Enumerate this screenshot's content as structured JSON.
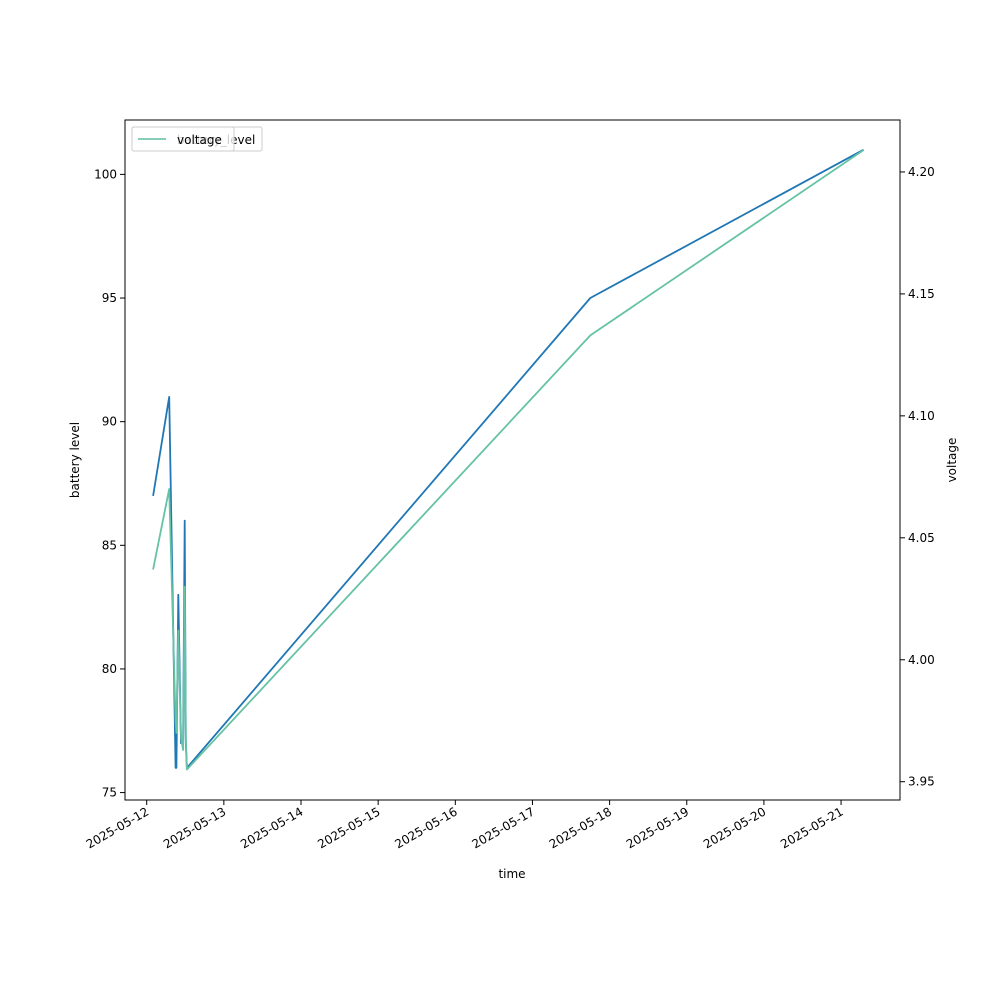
{
  "chart_data": {
    "type": "line",
    "xlabel": "time",
    "ylabel": "battery level",
    "ylabel_right": "voltage",
    "xlim": [
      "2025-05-11 17:15",
      "2025-05-21 18:20"
    ],
    "ylim": [
      74.7,
      102.2
    ],
    "ylim_right": [
      3.9425,
      4.2213
    ],
    "x_ticks": [
      "2025-05-12",
      "2025-05-13",
      "2025-05-14",
      "2025-05-15",
      "2025-05-16",
      "2025-05-17",
      "2025-05-18",
      "2025-05-19",
      "2025-05-20",
      "2025-05-21"
    ],
    "y_ticks": [
      75,
      80,
      85,
      90,
      95,
      100
    ],
    "y_ticks_right": [
      "3.95",
      "4.00",
      "4.05",
      "4.10",
      "4.15",
      "4.20"
    ],
    "legend": {
      "placement": "top-left",
      "entries": [
        {
          "name": "battery_level",
          "color": "#1f77b4"
        },
        {
          "name": "voltage",
          "color": "#66c2a5"
        }
      ]
    },
    "series": [
      {
        "name": "battery_level",
        "axis": "left",
        "color": "#1f77b4",
        "points": [
          {
            "x": "2025-05-12 02:00",
            "y": 87
          },
          {
            "x": "2025-05-12 07:00",
            "y": 91
          },
          {
            "x": "2025-05-12 09:00",
            "y": 76
          },
          {
            "x": "2025-05-12 09:15",
            "y": 76
          },
          {
            "x": "2025-05-12 09:50",
            "y": 83
          },
          {
            "x": "2025-05-12 10:40",
            "y": 77
          },
          {
            "x": "2025-05-12 11:20",
            "y": 77
          },
          {
            "x": "2025-05-12 11:50",
            "y": 86
          },
          {
            "x": "2025-05-12 12:10",
            "y": 77
          },
          {
            "x": "2025-05-12 12:30",
            "y": 76
          },
          {
            "x": "2025-05-17 18:00",
            "y": 95
          },
          {
            "x": "2025-05-21 07:00",
            "y": 101
          }
        ]
      },
      {
        "name": "voltage",
        "axis": "right",
        "color": "#66c2a5",
        "points": [
          {
            "x": "2025-05-12 02:00",
            "y": 4.037
          },
          {
            "x": "2025-05-12 07:00",
            "y": 4.07
          },
          {
            "x": "2025-05-12 09:00",
            "y": 3.975
          },
          {
            "x": "2025-05-12 09:15",
            "y": 3.97
          },
          {
            "x": "2025-05-12 09:50",
            "y": 4.012
          },
          {
            "x": "2025-05-12 10:40",
            "y": 3.968
          },
          {
            "x": "2025-05-12 11:20",
            "y": 3.963
          },
          {
            "x": "2025-05-12 11:50",
            "y": 4.03
          },
          {
            "x": "2025-05-12 12:10",
            "y": 3.968
          },
          {
            "x": "2025-05-12 12:30",
            "y": 3.955
          },
          {
            "x": "2025-05-17 18:00",
            "y": 4.133
          },
          {
            "x": "2025-05-21 07:00",
            "y": 4.209
          }
        ]
      }
    ]
  }
}
